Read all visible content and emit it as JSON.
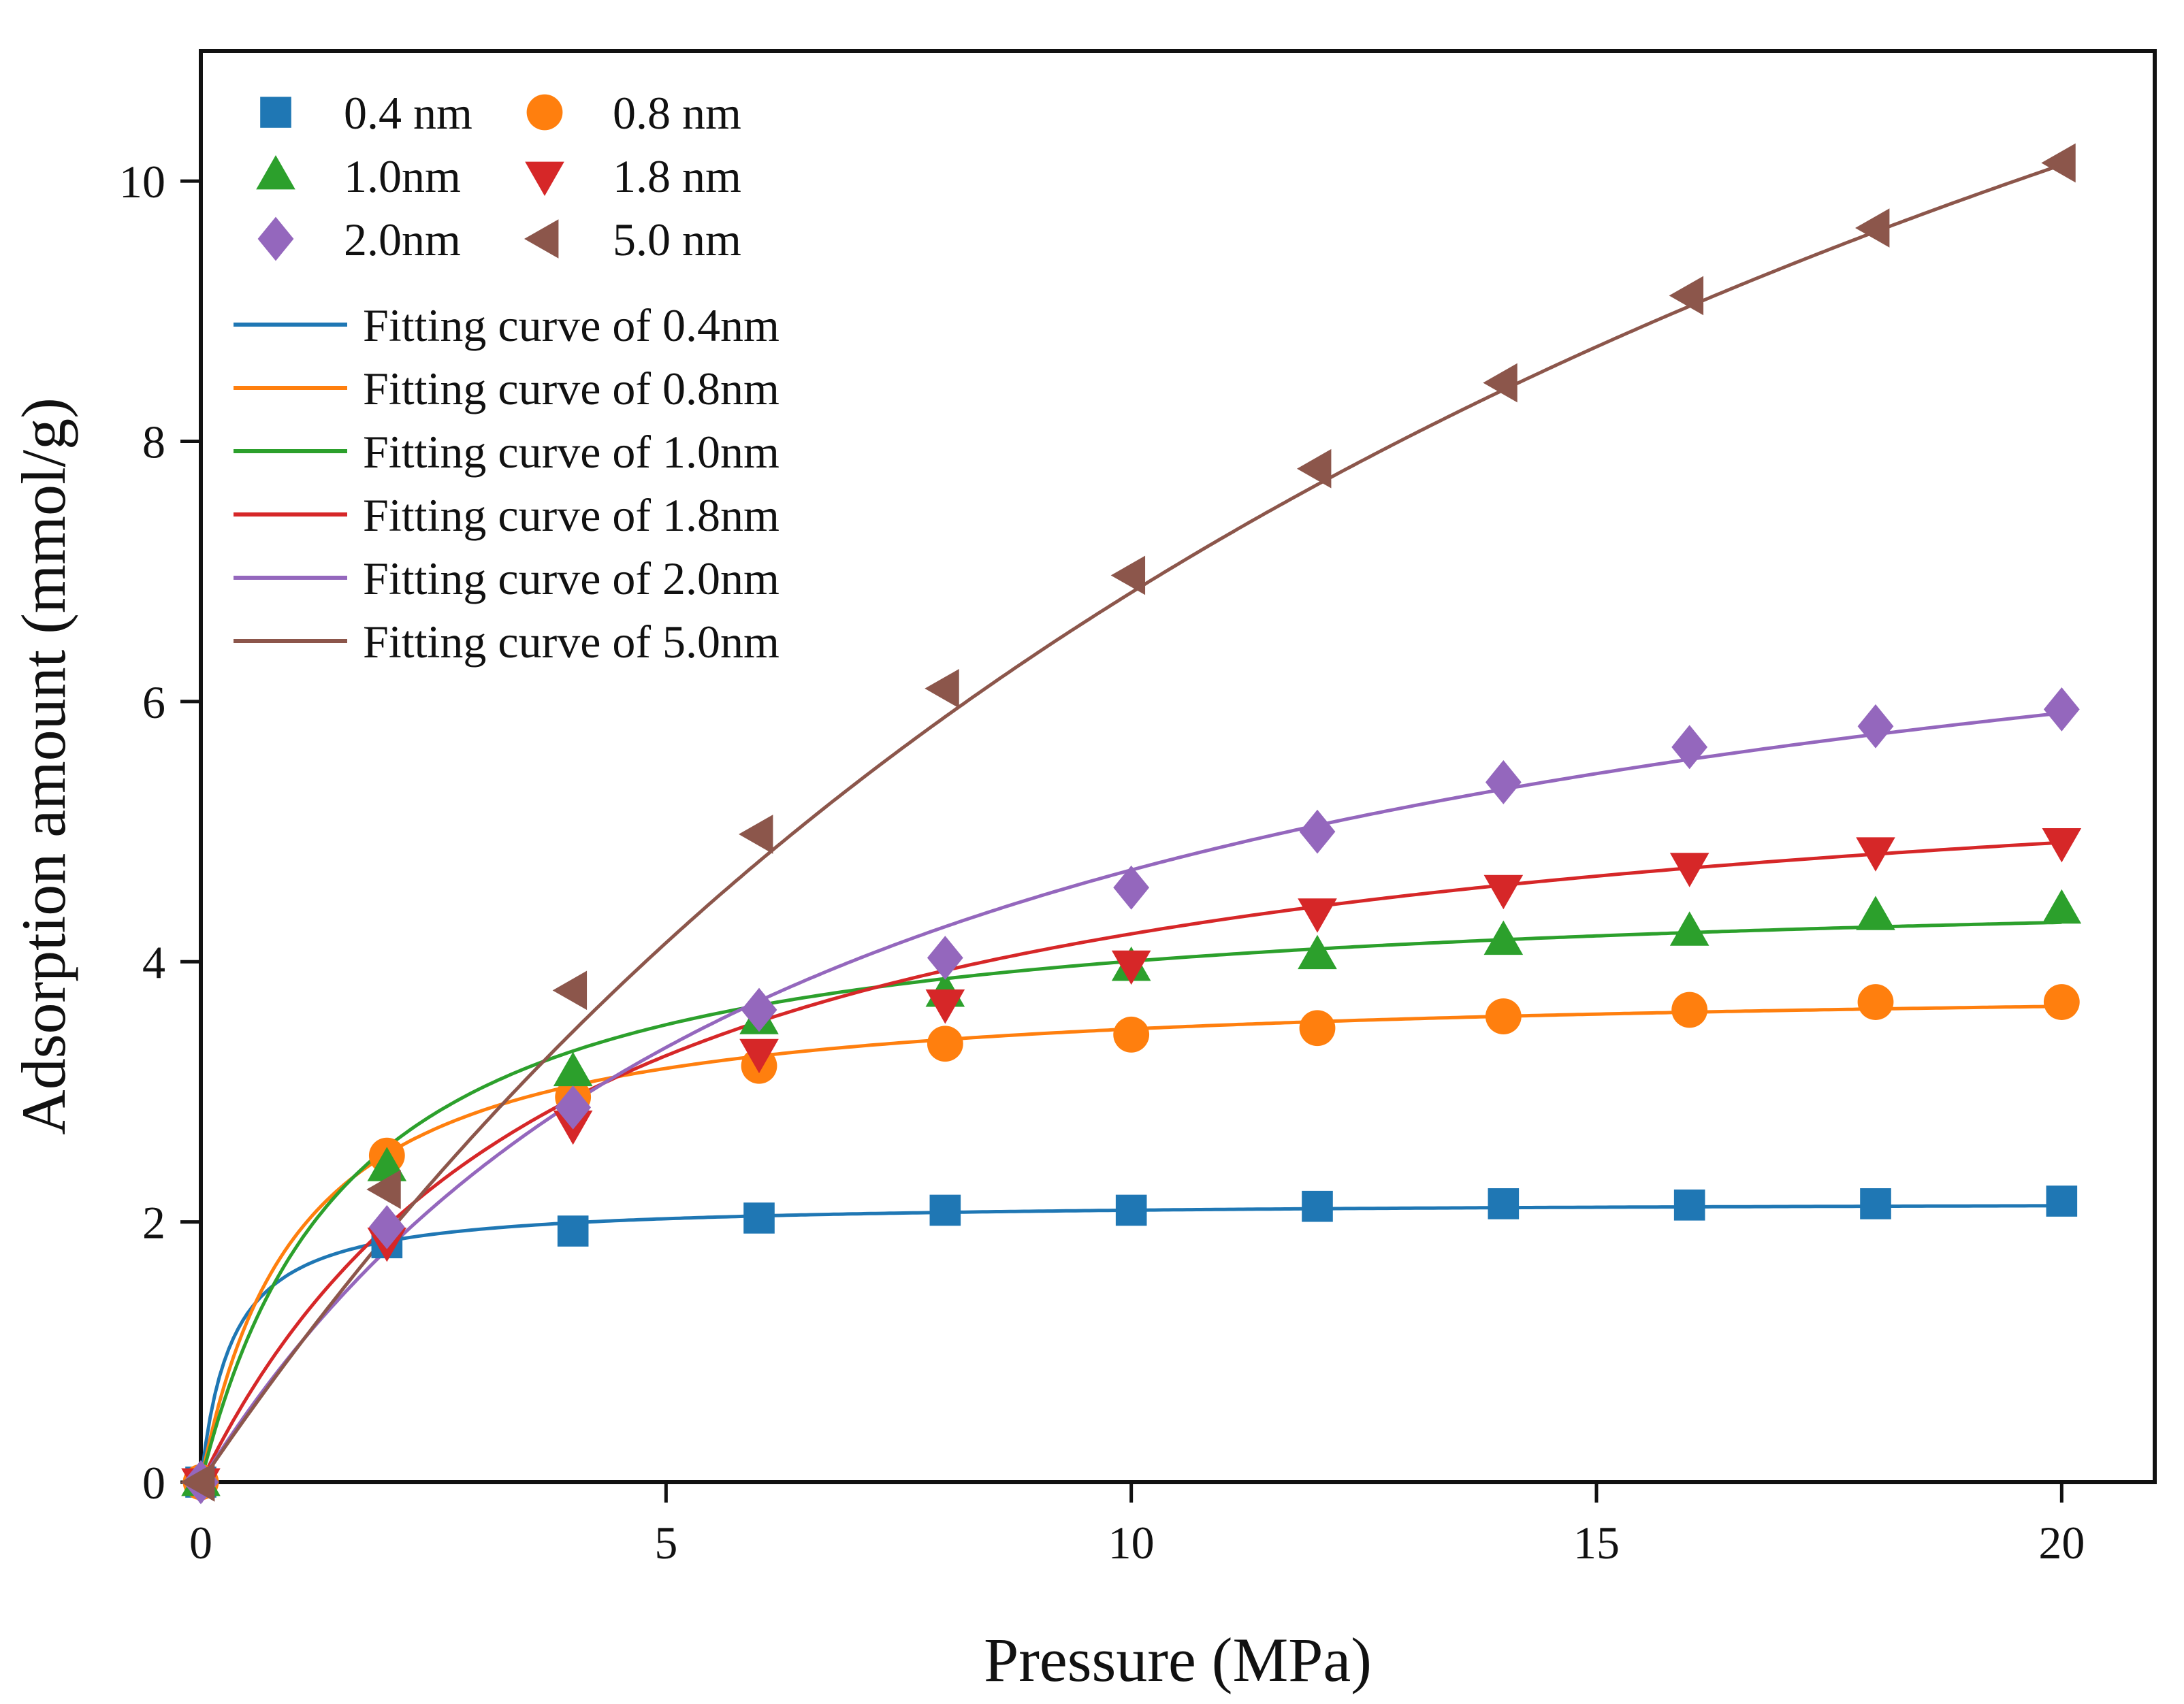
{
  "chart_data": {
    "type": "scatter",
    "title": "",
    "xlabel": "Pressure (MPa)",
    "ylabel": "Adsorption amount (mmol/g)",
    "xlim": [
      0,
      21
    ],
    "ylim": [
      0,
      11
    ],
    "xticks": [
      0,
      5,
      10,
      15,
      20
    ],
    "yticks": [
      0,
      2,
      4,
      6,
      8,
      10
    ],
    "xtick_labels": [
      "0",
      "5",
      "10",
      "15",
      "20"
    ],
    "ytick_labels": [
      "0",
      "2",
      "4",
      "6",
      "8",
      "10"
    ],
    "legend_position": "top-left",
    "x": [
      0,
      2,
      4,
      6,
      8,
      10,
      12,
      14,
      16,
      18,
      20
    ],
    "series": [
      {
        "name": "0.4 nm",
        "marker": "square",
        "color": "#1f77b4",
        "values": [
          0,
          1.84,
          1.93,
          2.03,
          2.09,
          2.09,
          2.12,
          2.14,
          2.13,
          2.14,
          2.16
        ],
        "fit_label": "Fitting curve of 0.4nm",
        "fit": {
          "model": "langmuir",
          "qm": 2.16,
          "b": 3.0
        }
      },
      {
        "name": "0.8 nm",
        "marker": "circle",
        "color": "#ff7f0e",
        "values": [
          0,
          2.51,
          2.96,
          3.2,
          3.37,
          3.44,
          3.49,
          3.58,
          3.63,
          3.69,
          3.69
        ],
        "fit_label": "Fitting curve of 0.8nm",
        "fit": {
          "model": "langmuir",
          "qm": 3.85,
          "b": 0.95
        }
      },
      {
        "name": "1.0nm",
        "marker": "triangle-up",
        "color": "#2ca02c",
        "values": [
          0,
          2.42,
          3.15,
          3.55,
          3.76,
          3.96,
          4.05,
          4.16,
          4.23,
          4.35,
          4.4
        ],
        "fit_label": "Fitting curve of 1.0nm",
        "fit": {
          "model": "langmuir",
          "qm": 4.65,
          "b": 0.62
        }
      },
      {
        "name": "1.8 nm",
        "marker": "triangle-down",
        "color": "#d62728",
        "values": [
          0,
          1.85,
          2.75,
          3.3,
          3.68,
          3.98,
          4.38,
          4.56,
          4.73,
          4.85,
          4.92
        ],
        "fit_label": "Fitting curve of 1.8nm",
        "fit": {
          "model": "langmuir",
          "qm": 5.9,
          "b": 0.25
        }
      },
      {
        "name": "2.0nm",
        "marker": "diamond",
        "color": "#9467bd",
        "values": [
          0,
          1.96,
          2.88,
          3.63,
          4.03,
          4.57,
          5.0,
          5.38,
          5.65,
          5.81,
          5.94
        ],
        "fit_label": "Fitting curve of 2.0nm",
        "fit": {
          "model": "langmuir",
          "qm": 7.95,
          "b": 0.145
        }
      },
      {
        "name": "5.0 nm",
        "marker": "triangle-left",
        "color": "#8c564b",
        "values": [
          0,
          2.25,
          3.78,
          4.98,
          6.1,
          6.97,
          7.79,
          8.45,
          9.12,
          9.64,
          10.14
        ],
        "fit_label": "Fitting curve of 5.0nm",
        "fit": {
          "model": "langmuir",
          "qm": 19.5,
          "b": 0.054
        }
      }
    ]
  }
}
